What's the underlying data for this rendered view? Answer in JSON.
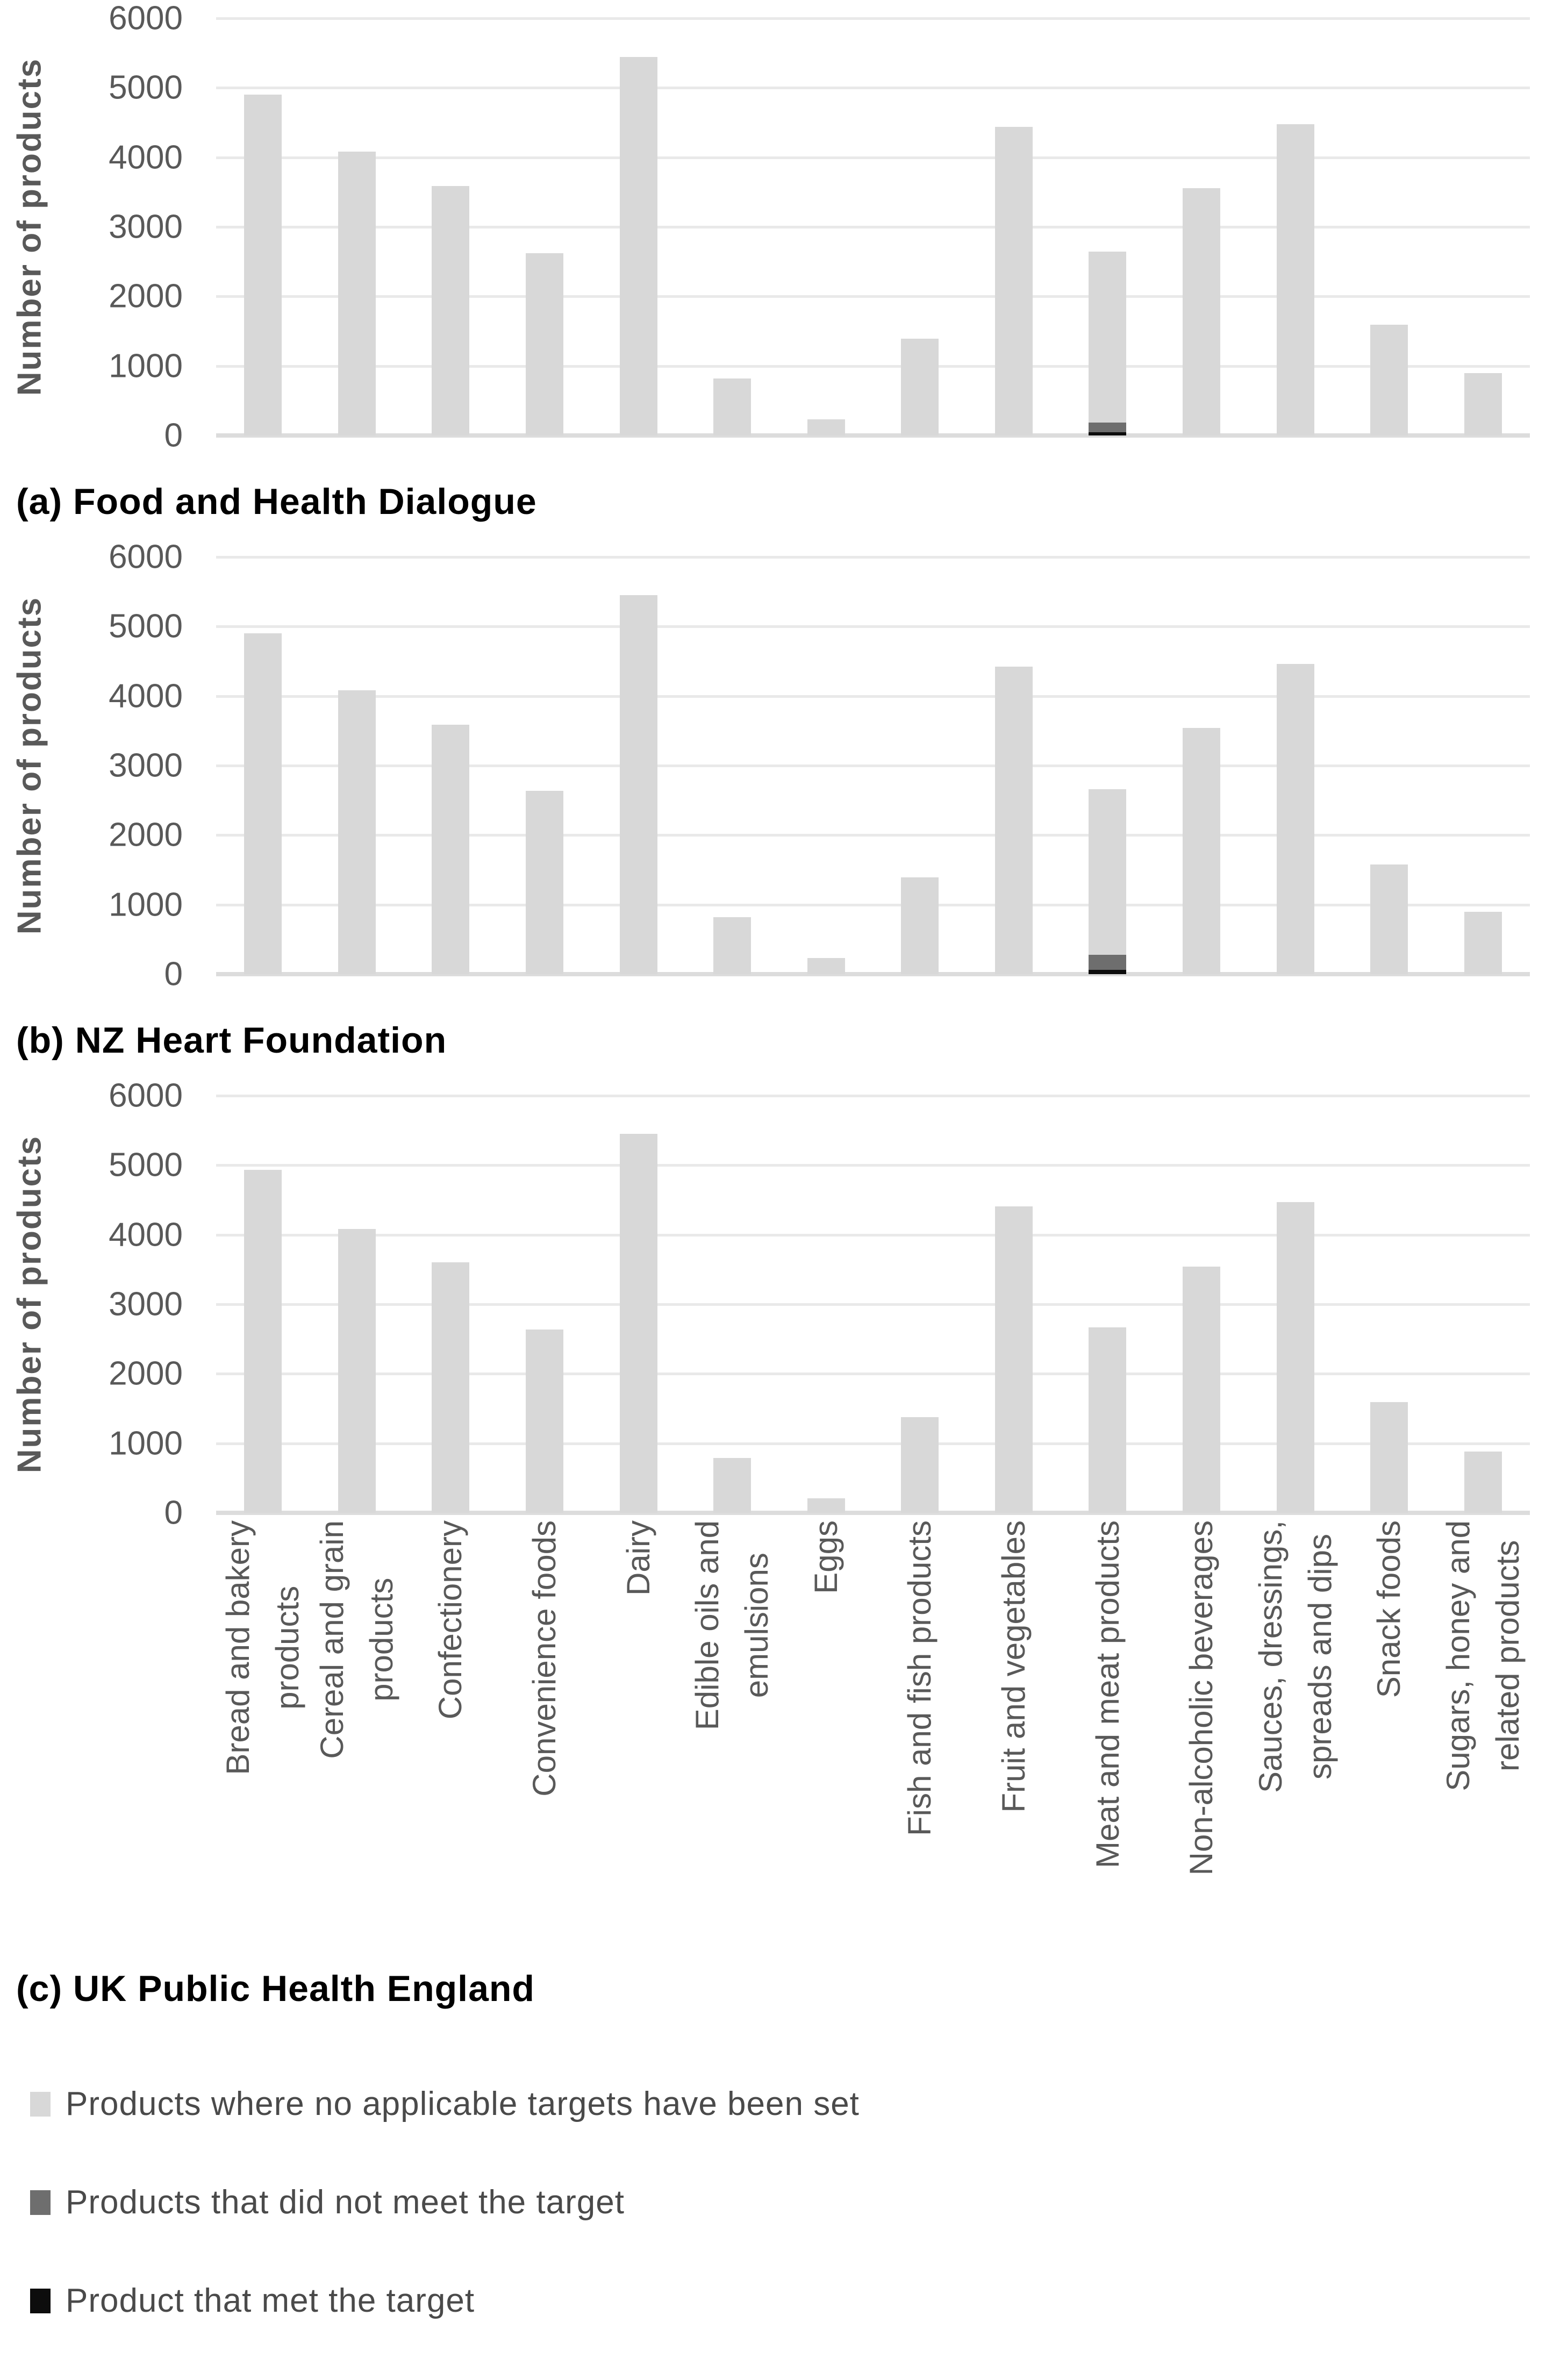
{
  "figure": {
    "y_axis_title": "Number of products",
    "y_ticks": [
      "6000",
      "5000",
      "4000",
      "3000",
      "2000",
      "1000",
      "0"
    ],
    "y_max": 6000
  },
  "colors": {
    "bar_no_target": "#d8d8d8",
    "bar_not_met": "#6e6e6e",
    "bar_met": "#0d0d0d",
    "gridline": "#e9e9e9",
    "baseline": "#dcdcdc",
    "axis_text": "#595959",
    "caption_text": "#000000",
    "legend_text": "#4a4a4a"
  },
  "category_display_lines": [
    [
      "Bread and bakery",
      "products"
    ],
    [
      "Cereal and grain",
      "products"
    ],
    [
      "Confectionery"
    ],
    [
      "Convenience foods"
    ],
    [
      "Dairy"
    ],
    [
      "Edible oils and",
      "emulsions"
    ],
    [
      "Eggs"
    ],
    [
      "Fish and fish products"
    ],
    [
      "Fruit and vegetables"
    ],
    [
      "Meat and meat products"
    ],
    [
      "Non-alcoholic beverages"
    ],
    [
      "Sauces, dressings,",
      "spreads and dips"
    ],
    [
      "Snack foods"
    ],
    [
      "Sugars, honey and",
      "related products"
    ]
  ],
  "chart_data": [
    {
      "type": "bar",
      "stacked": true,
      "caption": "(a) Food and Health Dialogue",
      "ylabel": "Number of products",
      "ylim": [
        0,
        6000
      ],
      "grid": true,
      "categories": [
        "Bread and bakery products",
        "Cereal and grain products",
        "Confectionery",
        "Convenience foods",
        "Dairy",
        "Edible oils and emulsions",
        "Eggs",
        "Fish and fish products",
        "Fruit and vegetables",
        "Meat and meat products",
        "Non-alcoholic beverages",
        "Sauces, dressings, spreads and dips",
        "Snack foods",
        "Sugars, honey and related products"
      ],
      "series": [
        {
          "name": "Product that met the target",
          "values": [
            0,
            0,
            0,
            0,
            0,
            0,
            0,
            0,
            0,
            50,
            0,
            0,
            0,
            0
          ]
        },
        {
          "name": "Products that did not meet the target",
          "values": [
            0,
            0,
            0,
            0,
            0,
            0,
            0,
            0,
            0,
            140,
            0,
            0,
            0,
            0
          ]
        },
        {
          "name": "Products where no applicable targets have been set",
          "values": [
            4900,
            4080,
            3590,
            2620,
            5440,
            820,
            230,
            1390,
            4440,
            2460,
            3560,
            4480,
            1590,
            900
          ]
        }
      ]
    },
    {
      "type": "bar",
      "stacked": true,
      "caption": "(b) NZ Heart Foundation",
      "ylabel": "Number of products",
      "ylim": [
        0,
        6000
      ],
      "grid": true,
      "categories": [
        "Bread and bakery products",
        "Cereal and grain products",
        "Confectionery",
        "Convenience foods",
        "Dairy",
        "Edible oils and emulsions",
        "Eggs",
        "Fish and fish products",
        "Fruit and vegetables",
        "Meat and meat products",
        "Non-alcoholic beverages",
        "Sauces, dressings, spreads and dips",
        "Snack foods",
        "Sugars, honey and related products"
      ],
      "series": [
        {
          "name": "Product that met the target",
          "values": [
            0,
            0,
            0,
            0,
            0,
            0,
            0,
            0,
            0,
            60,
            0,
            0,
            0,
            0
          ]
        },
        {
          "name": "Products that did not meet the target",
          "values": [
            0,
            0,
            0,
            0,
            0,
            0,
            0,
            0,
            0,
            220,
            0,
            0,
            0,
            0
          ]
        },
        {
          "name": "Products where no applicable targets have been set",
          "values": [
            4900,
            4080,
            3590,
            2640,
            5450,
            820,
            230,
            1390,
            4420,
            2380,
            3540,
            4460,
            1580,
            900
          ]
        }
      ]
    },
    {
      "type": "bar",
      "stacked": true,
      "caption": "(c) UK Public Health England",
      "ylabel": "Number of products",
      "ylim": [
        0,
        6000
      ],
      "grid": true,
      "categories": [
        "Bread and bakery products",
        "Cereal and grain products",
        "Confectionery",
        "Convenience foods",
        "Dairy",
        "Edible oils and emulsions",
        "Eggs",
        "Fish and fish products",
        "Fruit and vegetables",
        "Meat and meat products",
        "Non-alcoholic beverages",
        "Sauces, dressings, spreads and dips",
        "Snack foods",
        "Sugars, honey and related products"
      ],
      "series": [
        {
          "name": "Product that met the target",
          "values": [
            0,
            0,
            0,
            0,
            0,
            0,
            0,
            0,
            0,
            0,
            0,
            0,
            0,
            0
          ]
        },
        {
          "name": "Products that did not meet the target",
          "values": [
            0,
            0,
            0,
            0,
            0,
            0,
            0,
            0,
            0,
            0,
            0,
            0,
            0,
            0
          ]
        },
        {
          "name": "Products where no applicable targets have been set",
          "values": [
            4930,
            4080,
            3600,
            2640,
            5450,
            790,
            210,
            1380,
            4410,
            2670,
            3540,
            4470,
            1590,
            880
          ]
        }
      ]
    }
  ],
  "legend": [
    {
      "label": "Products where no applicable targets have been set",
      "color_key": "bar_no_target"
    },
    {
      "label": "Products that did not meet the target",
      "color_key": "bar_not_met"
    },
    {
      "label": "Product that met the target",
      "color_key": "bar_met"
    }
  ]
}
